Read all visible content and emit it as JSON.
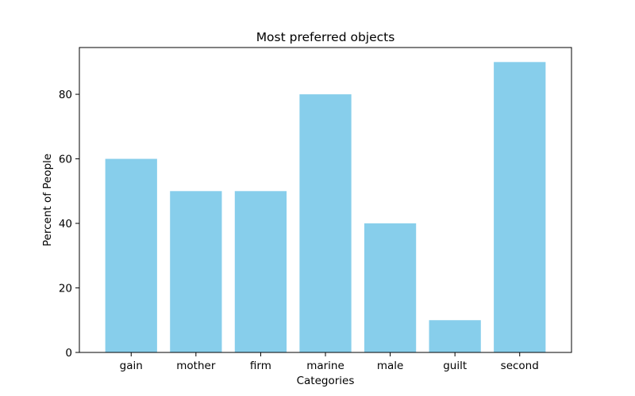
{
  "chart_data": {
    "type": "bar",
    "title": "Most preferred objects",
    "xlabel": "Categories",
    "ylabel": "Percent of People",
    "categories": [
      "gain",
      "mother",
      "firm",
      "marine",
      "male",
      "guilt",
      "second"
    ],
    "values": [
      60,
      50,
      50,
      80,
      40,
      10,
      90
    ],
    "ylim": [
      0,
      94.5
    ],
    "yticks": [
      0,
      20,
      40,
      60,
      80
    ],
    "bar_color": "#87ceeb",
    "grid": false,
    "legend": "none"
  }
}
